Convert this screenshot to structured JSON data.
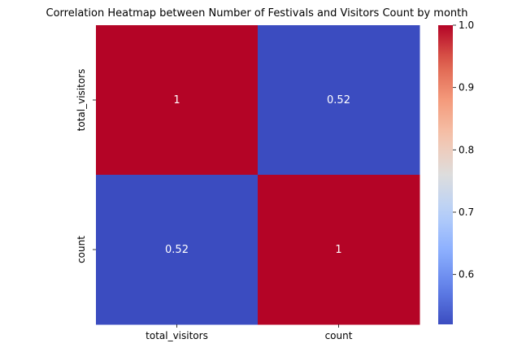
{
  "chart_data": {
    "type": "heatmap",
    "title": "Correlation Heatmap between Number of Festivals and Visitors Count by month",
    "xlabel": "",
    "ylabel": "",
    "x_categories": [
      "total_visitors",
      "count"
    ],
    "y_categories": [
      "total_visitors",
      "count"
    ],
    "values": [
      [
        1,
        0.52
      ],
      [
        0.52,
        1
      ]
    ],
    "annotations": [
      [
        "1",
        "0.52"
      ],
      [
        "0.52",
        "1"
      ]
    ],
    "colormap": "coolwarm",
    "colors": {
      "low": "#3b4cc0",
      "mid": "#dddddd",
      "high": "#b40426"
    },
    "colorbar": {
      "range": [
        0.52,
        1.0
      ],
      "ticks": [
        0.6,
        0.7,
        0.8,
        0.9,
        1.0
      ],
      "tick_labels": [
        "0.6",
        "0.7",
        "0.8",
        "0.9",
        "1.0"
      ]
    },
    "grid": false,
    "legend": "colorbar-right"
  }
}
